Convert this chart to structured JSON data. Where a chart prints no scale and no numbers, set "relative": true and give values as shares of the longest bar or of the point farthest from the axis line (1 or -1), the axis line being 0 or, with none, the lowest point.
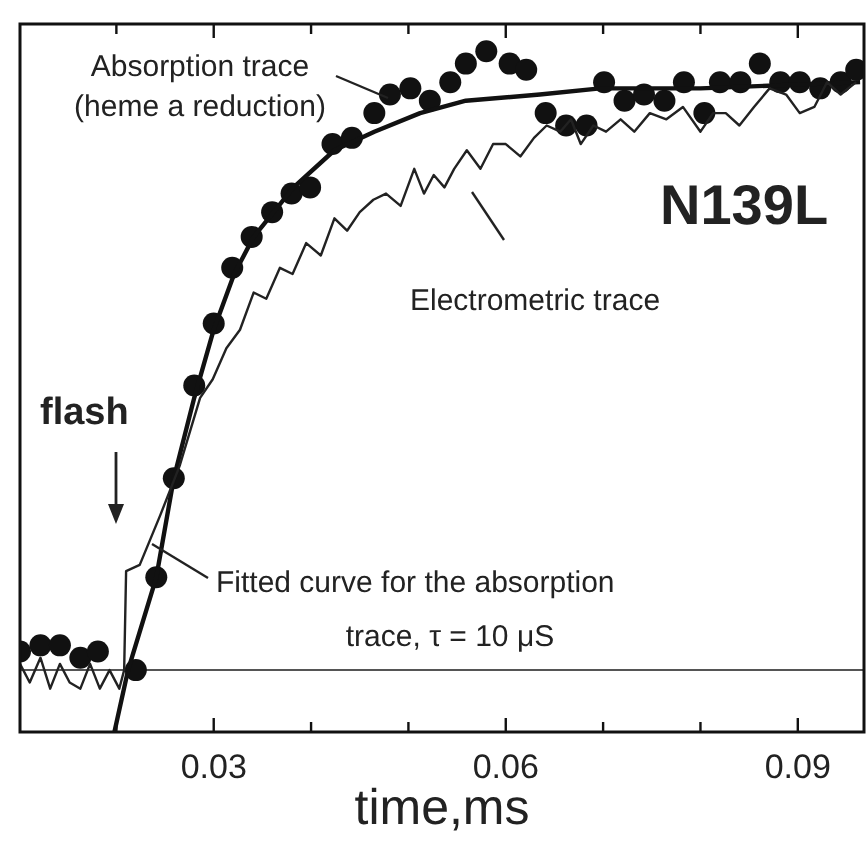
{
  "chart_data": {
    "type": "line",
    "relative": true,
    "xlabel": "time,ms",
    "xlim": [
      0.0101,
      0.0968
    ],
    "xticks": [
      {
        "value": 0.02,
        "label": null
      },
      0.03,
      {
        "value": 0.04,
        "label": null
      },
      {
        "value": 0.05,
        "label": null
      },
      0.06,
      {
        "value": 0.07,
        "label": null
      },
      {
        "value": 0.08,
        "label": null
      },
      0.09
    ],
    "tick_labels": "x",
    "grid": false,
    "annotations": [
      "Absorption trace",
      "(heme a reduction)",
      "N139L",
      "Electrometric trace",
      "flash",
      "Fitted curve for the absorption",
      "trace, τ = 10 μS"
    ],
    "series": [
      {
        "type": "scatter",
        "marker": "circle",
        "color": "#111111",
        "x": [
          0.0101,
          0.0122,
          0.0142,
          0.0163,
          0.0181,
          0.022,
          0.0241,
          0.0259,
          0.028,
          0.03,
          0.0319,
          0.0339,
          0.036,
          0.038,
          0.0399,
          0.0422,
          0.0442,
          0.0465,
          0.0481,
          0.0502,
          0.0522,
          0.0543,
          0.0559,
          0.058,
          0.0604,
          0.0621,
          0.0641,
          0.0662,
          0.0683,
          0.0701,
          0.0722,
          0.0742,
          0.0763,
          0.0783,
          0.0804,
          0.082,
          0.0841,
          0.0861,
          0.0882,
          0.0902,
          0.0923,
          0.0944,
          0.096
        ],
        "values": [
          0.03,
          0.04,
          0.04,
          0.02,
          0.03,
          0.0,
          0.15,
          0.31,
          0.46,
          0.56,
          0.65,
          0.7,
          0.74,
          0.77,
          0.78,
          0.85,
          0.86,
          0.9,
          0.93,
          0.94,
          0.92,
          0.95,
          0.98,
          1.0,
          0.98,
          0.97,
          0.9,
          0.88,
          0.88,
          0.95,
          0.92,
          0.93,
          0.92,
          0.95,
          0.9,
          0.95,
          0.95,
          0.98,
          0.95,
          0.95,
          0.94,
          0.95,
          0.97
        ]
      },
      {
        "color": "#111111",
        "line_style": "solid",
        "marker": "none",
        "x": [
          0.0198,
          0.0212,
          0.0241,
          0.0259,
          0.028,
          0.03,
          0.0321,
          0.0341,
          0.0382,
          0.0424,
          0.0465,
          0.0512,
          0.0559,
          0.0635,
          0.0697,
          0.08,
          0.0964
        ],
        "values": [
          -0.1,
          0.0,
          0.15,
          0.31,
          0.44,
          0.55,
          0.64,
          0.7,
          0.78,
          0.84,
          0.87,
          0.9,
          0.92,
          0.93,
          0.94,
          0.94,
          0.95
        ]
      },
      {
        "color": "#222222",
        "line_style": "solid",
        "marker": "none",
        "x": [
          0.0101,
          0.0111,
          0.0122,
          0.0132,
          0.0142,
          0.0152,
          0.0163,
          0.0173,
          0.0183,
          0.0193,
          0.0203,
          0.0208,
          0.021,
          0.0224,
          0.0245,
          0.0265,
          0.0286,
          0.0299,
          0.0313,
          0.0327,
          0.0341,
          0.0354,
          0.0368,
          0.0381,
          0.0395,
          0.041,
          0.0424,
          0.0437,
          0.045,
          0.0464,
          0.0477,
          0.0492,
          0.0506,
          0.0516,
          0.0526,
          0.0537,
          0.0547,
          0.056,
          0.0574,
          0.0587,
          0.06,
          0.0615,
          0.0629,
          0.0642,
          0.0656,
          0.0667,
          0.0677,
          0.069,
          0.0703,
          0.0718,
          0.0732,
          0.0748,
          0.0765,
          0.0782,
          0.08,
          0.0813,
          0.0826,
          0.084,
          0.0855,
          0.0871,
          0.0888,
          0.0902,
          0.0917,
          0.093,
          0.0944,
          0.096
        ],
        "values": [
          0.01,
          -0.02,
          0.02,
          -0.03,
          0.01,
          -0.02,
          -0.03,
          0.01,
          -0.03,
          0.0,
          -0.03,
          0.0,
          0.16,
          0.17,
          0.25,
          0.33,
          0.44,
          0.47,
          0.52,
          0.55,
          0.61,
          0.6,
          0.65,
          0.64,
          0.69,
          0.67,
          0.73,
          0.71,
          0.74,
          0.76,
          0.77,
          0.75,
          0.81,
          0.77,
          0.8,
          0.78,
          0.81,
          0.84,
          0.81,
          0.85,
          0.85,
          0.83,
          0.86,
          0.88,
          0.87,
          0.89,
          0.85,
          0.88,
          0.87,
          0.89,
          0.87,
          0.9,
          0.89,
          0.91,
          0.87,
          0.9,
          0.9,
          0.88,
          0.91,
          0.94,
          0.93,
          0.9,
          0.91,
          0.95,
          0.93,
          0.95
        ]
      }
    ]
  }
}
